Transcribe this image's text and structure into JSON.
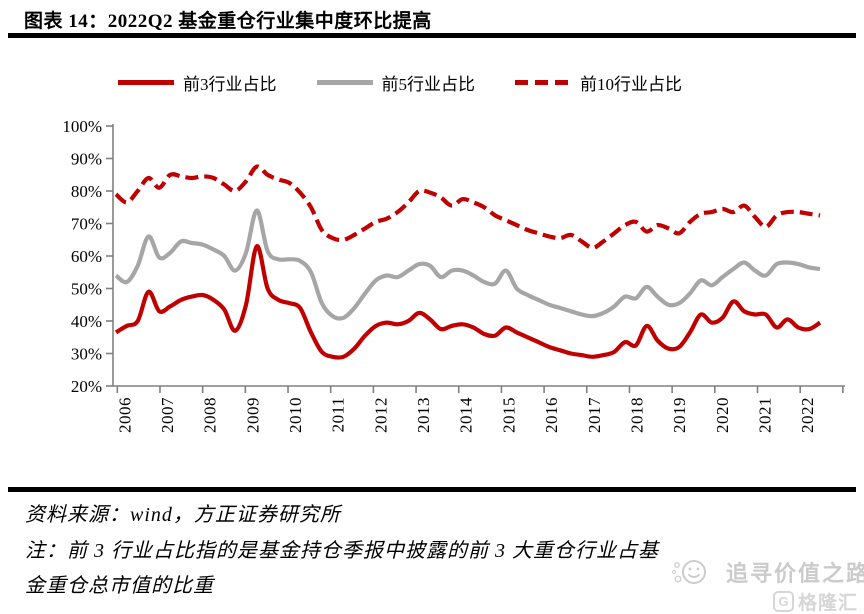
{
  "title": "图表 14：2022Q2 基金重仓行业集中度环比提高",
  "legend": [
    {
      "label": "前3行业占比",
      "color": "#c00000",
      "dash": false
    },
    {
      "label": "前5行业占比",
      "color": "#a6a6a6",
      "dash": false
    },
    {
      "label": "前10行业占比",
      "color": "#c00000",
      "dash": true
    }
  ],
  "footer": {
    "source": "资料来源：wind，方正证券研究所",
    "note_line1": "注：前 3 行业占比指的是基金持仓季报中披露的前 3 大重仓行业占基",
    "note_line2": "金重仓总市值的比重"
  },
  "watermark": {
    "text": "追寻价值之路",
    "logo_letter": "G",
    "logo_text": "格隆汇"
  },
  "chart_data": {
    "type": "line",
    "title": "",
    "x_unit": "quarter",
    "x_start": "2006Q1",
    "x_end": "2022Q2",
    "x_tick_labels": [
      "2006",
      "2007",
      "2008",
      "2009",
      "2010",
      "2011",
      "2012",
      "2013",
      "2014",
      "2015",
      "2016",
      "2017",
      "2018",
      "2019",
      "2020",
      "2021",
      "2022"
    ],
    "ylim": [
      20,
      100
    ],
    "y_tick_labels": [
      "20%",
      "30%",
      "40%",
      "50%",
      "60%",
      "70%",
      "80%",
      "90%",
      "100%"
    ],
    "grid": false,
    "legend_position": "top",
    "axis_color": "#808080",
    "label_color": "#000000",
    "series": [
      {
        "name": "前3行业占比",
        "color": "#c00000",
        "dash": false,
        "values": [
          36.5,
          38.5,
          40,
          49,
          43,
          44.5,
          46.5,
          47.5,
          48,
          46.5,
          43.5,
          37,
          45,
          63,
          50,
          46.5,
          45.5,
          44,
          36.5,
          30.5,
          29,
          29,
          31.5,
          35.5,
          38.5,
          39.5,
          39,
          40,
          42.5,
          40.5,
          37.5,
          38.5,
          39,
          38,
          36,
          35.5,
          38,
          36.5,
          35,
          33.5,
          32,
          31,
          30,
          29.5,
          29,
          29.5,
          30.5,
          33.5,
          32.5,
          38.5,
          34,
          31.5,
          32,
          36.5,
          42,
          39.5,
          41,
          46,
          43,
          42,
          42,
          38,
          40.5,
          38,
          37.5,
          39.5
        ]
      },
      {
        "name": "前5行业占比",
        "color": "#a6a6a6",
        "dash": false,
        "values": [
          54,
          52,
          57,
          66,
          59.5,
          61,
          64.5,
          64,
          63.5,
          62,
          60,
          55.5,
          61,
          74,
          61.5,
          59,
          59,
          58.5,
          55,
          45.5,
          41.5,
          41,
          44,
          48.5,
          52.5,
          54,
          53.5,
          55.5,
          57.5,
          57,
          53.5,
          55.5,
          55.5,
          54,
          52,
          51.5,
          55.5,
          50,
          48,
          46.5,
          45,
          44,
          43,
          42,
          41.5,
          42.5,
          44.5,
          47.5,
          47,
          50.5,
          47.5,
          45,
          45.5,
          48.5,
          52.5,
          51,
          53.5,
          56,
          58,
          55.5,
          54,
          57.5,
          58,
          57.5,
          56.5,
          56
        ]
      },
      {
        "name": "前10行业占比",
        "color": "#c00000",
        "dash": true,
        "values": [
          79,
          76.5,
          80,
          84,
          81,
          85,
          84.5,
          84,
          84.5,
          84,
          82,
          80,
          83,
          87.5,
          85,
          83.5,
          82.5,
          79.5,
          75,
          68,
          65.5,
          65,
          66.5,
          68.5,
          70.5,
          71.5,
          73.5,
          76.5,
          80,
          79.5,
          78,
          75.5,
          77.5,
          76.5,
          75,
          72.5,
          71,
          69.5,
          68,
          67,
          66,
          65.5,
          66.5,
          64.5,
          62.5,
          64.5,
          67,
          69.5,
          70.5,
          67.5,
          69.5,
          68.5,
          67,
          70.5,
          73,
          73.5,
          74.5,
          73.5,
          75.5,
          72,
          69,
          72.5,
          73.5,
          73.5,
          73,
          72.5
        ]
      }
    ]
  }
}
